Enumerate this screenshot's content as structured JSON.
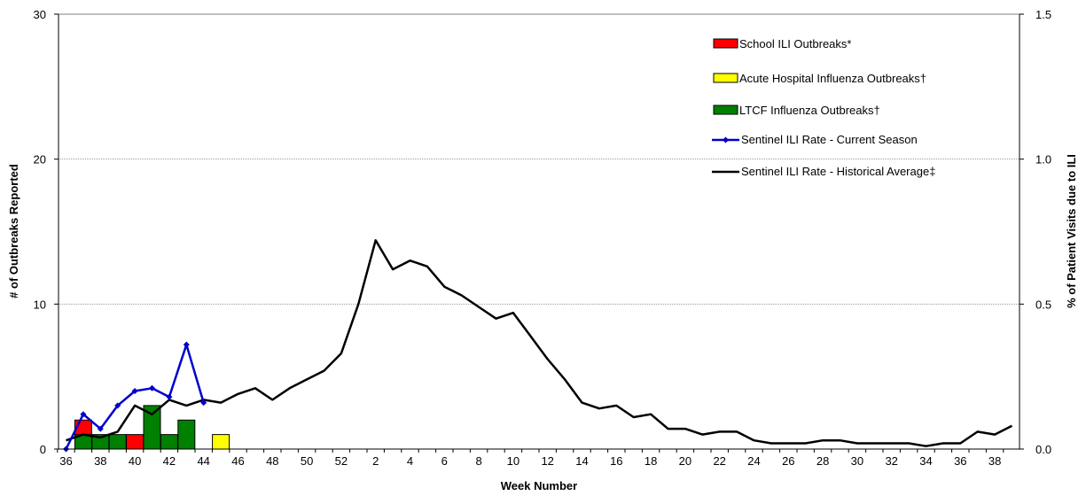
{
  "chart_data": {
    "type": "bar",
    "xlabel": "Week Number",
    "ylabel_left": "# of Outbreaks Reported",
    "ylabel_right": "% of Patient Visits due to ILI",
    "ylim_left": [
      0,
      30
    ],
    "ylim_right": [
      0,
      1.5
    ],
    "yticks_left": [
      "0",
      "10",
      "20",
      "30"
    ],
    "yticks_right": [
      "0.0",
      "0.5",
      "1.0",
      "1.5"
    ],
    "grid": "horizontal",
    "legend_position": "top-right",
    "weeks": [
      36,
      37,
      38,
      39,
      40,
      41,
      42,
      43,
      44,
      45,
      46,
      47,
      48,
      49,
      50,
      51,
      52,
      1,
      2,
      3,
      4,
      5,
      6,
      7,
      8,
      9,
      10,
      11,
      12,
      13,
      14,
      15,
      16,
      17,
      18,
      19,
      20,
      21,
      22,
      23,
      24,
      25,
      26,
      27,
      28,
      29,
      30,
      31,
      32,
      33,
      34,
      35,
      36,
      37,
      38,
      39
    ],
    "tick_labels": [
      "36",
      "38",
      "40",
      "42",
      "44",
      "46",
      "48",
      "50",
      "52",
      "2",
      "4",
      "6",
      "8",
      "10",
      "12",
      "14",
      "16",
      "18",
      "20",
      "22",
      "24",
      "26",
      "28",
      "30",
      "32",
      "34",
      "36",
      "38"
    ],
    "colors": {
      "school": "#ff0000",
      "hospital": "#ffff00",
      "ltcf": "#008000",
      "current": "#0000cc",
      "historical": "#000000",
      "grid": "#999999"
    },
    "series": [
      {
        "name": "School ILI Outbreaks*",
        "kind": "bar",
        "values": [
          0,
          1,
          0,
          0,
          1,
          0,
          0,
          0,
          0,
          0,
          0,
          0,
          0,
          0,
          0,
          0,
          0,
          0,
          0,
          0,
          0,
          0,
          0,
          0,
          0,
          0,
          0,
          0,
          0,
          0,
          0,
          0,
          0,
          0,
          0,
          0,
          0,
          0,
          0,
          0,
          0,
          0,
          0,
          0,
          0,
          0,
          0,
          0,
          0,
          0,
          0,
          0,
          0,
          0,
          0,
          0
        ]
      },
      {
        "name": "Acute Hospital Influenza Outbreaks†",
        "kind": "bar",
        "values": [
          0,
          0,
          0,
          0,
          0,
          0,
          0,
          0,
          0,
          1,
          0,
          0,
          0,
          0,
          0,
          0,
          0,
          0,
          0,
          0,
          0,
          0,
          0,
          0,
          0,
          0,
          0,
          0,
          0,
          0,
          0,
          0,
          0,
          0,
          0,
          0,
          0,
          0,
          0,
          0,
          0,
          0,
          0,
          0,
          0,
          0,
          0,
          0,
          0,
          0,
          0,
          0,
          0,
          0,
          0,
          0
        ]
      },
      {
        "name": "LTCF Influenza Outbreaks†",
        "kind": "bar",
        "values": [
          0,
          1,
          1,
          1,
          0,
          3,
          1,
          2,
          0,
          0,
          0,
          0,
          0,
          0,
          0,
          0,
          0,
          0,
          0,
          0,
          0,
          0,
          0,
          0,
          0,
          0,
          0,
          0,
          0,
          0,
          0,
          0,
          0,
          0,
          0,
          0,
          0,
          0,
          0,
          0,
          0,
          0,
          0,
          0,
          0,
          0,
          0,
          0,
          0,
          0,
          0,
          0,
          0,
          0,
          0,
          0
        ]
      },
      {
        "name": "Sentinel ILI Rate - Current Season",
        "kind": "line",
        "axis": "right",
        "values": [
          0.0,
          0.12,
          0.07,
          0.15,
          0.2,
          0.21,
          0.18,
          0.36,
          0.16
        ]
      },
      {
        "name": "Sentinel ILI Rate - Historical Average‡",
        "kind": "line",
        "axis": "right",
        "values": [
          0.03,
          0.05,
          0.04,
          0.06,
          0.15,
          0.12,
          0.17,
          0.15,
          0.17,
          0.16,
          0.19,
          0.21,
          0.17,
          0.21,
          0.24,
          0.27,
          0.33,
          0.5,
          0.72,
          0.62,
          0.65,
          0.63,
          0.56,
          0.53,
          0.49,
          0.45,
          0.47,
          0.39,
          0.31,
          0.24,
          0.16,
          0.14,
          0.15,
          0.11,
          0.12,
          0.07,
          0.07,
          0.05,
          0.06,
          0.06,
          0.03,
          0.02,
          0.02,
          0.02,
          0.03,
          0.03,
          0.02,
          0.02,
          0.02,
          0.02,
          0.01,
          0.02,
          0.02,
          0.06,
          0.05,
          0.08
        ]
      }
    ]
  }
}
